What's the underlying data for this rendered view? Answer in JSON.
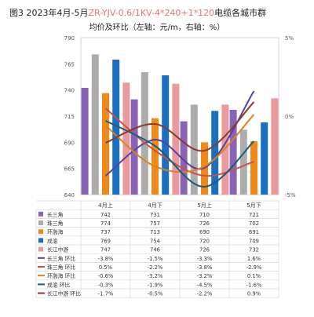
{
  "title": {
    "prefix": "图3 2023年4月-5月",
    "spec": "ZR-YJV-0.6/1KV-4*240+1*120",
    "suffix": "电缆各城市群",
    "subtitle": "均价及环比（左轴：元/m，右轴：%）"
  },
  "chart_data": {
    "type": "bar",
    "categories": [
      "4月上",
      "4月下",
      "5月上",
      "5月下"
    ],
    "y_left": {
      "range": [
        640,
        790
      ],
      "ticks": [
        640,
        665,
        690,
        715,
        740,
        765,
        790
      ]
    },
    "y_right": {
      "range": [
        -5,
        5
      ],
      "ticks": [
        "5%",
        "0%",
        "-5%"
      ]
    },
    "series": [
      {
        "name": "长三角",
        "values": [
          742,
          731,
          710,
          721
        ],
        "color": "#8a64b4",
        "type": "bar"
      },
      {
        "name": "珠三角",
        "values": [
          774,
          757,
          726,
          702
        ],
        "color": "#acacac",
        "type": "bar"
      },
      {
        "name": "环渤海",
        "values": [
          737,
          713,
          690,
          691
        ],
        "color": "#ef8a1a",
        "type": "bar"
      },
      {
        "name": "成渝",
        "values": [
          769,
          754,
          720,
          709
        ],
        "color": "#1b6fc0",
        "type": "bar"
      },
      {
        "name": "长江中游",
        "values": [
          747,
          746,
          726,
          732
        ],
        "color": "#e89a9c",
        "type": "bar"
      }
    ],
    "line_series": [
      {
        "name": "长三角 环比",
        "values": [
          -3.8,
          -1.5,
          -3.3,
          1.6
        ],
        "color": "#5b3e9a"
      },
      {
        "name": "珠三角 环比",
        "values": [
          0.5,
          -2.2,
          -3.8,
          -2.9
        ],
        "color": "#c8504a"
      },
      {
        "name": "环渤海 环比",
        "values": [
          -0.6,
          -3.2,
          -3.2,
          0.1
        ],
        "color": "#e08020"
      },
      {
        "name": "成渝 环比",
        "values": [
          -0.3,
          -1.9,
          -4.5,
          -1.6
        ],
        "color": "#1a5c7a"
      },
      {
        "name": "长江中游 环比",
        "values": [
          -1.7,
          -0.5,
          -2.2,
          0.9
        ],
        "color": "#8a3a2a"
      }
    ],
    "table": {
      "rows": [
        {
          "label": "长三角",
          "swatch": "bar",
          "color": "#8a64b4",
          "cells": [
            "742",
            "731",
            "710",
            "721"
          ]
        },
        {
          "label": "珠三角",
          "swatch": "bar",
          "color": "#acacac",
          "cells": [
            "774",
            "757",
            "726",
            "702"
          ]
        },
        {
          "label": "环渤海",
          "swatch": "bar",
          "color": "#ef8a1a",
          "cells": [
            "737",
            "713",
            "690",
            "691"
          ]
        },
        {
          "label": "成渝",
          "swatch": "bar",
          "color": "#1b6fc0",
          "cells": [
            "769",
            "754",
            "720",
            "709"
          ]
        },
        {
          "label": "长江中游",
          "swatch": "bar",
          "color": "#e89a9c",
          "cells": [
            "747",
            "746",
            "726",
            "732"
          ]
        },
        {
          "label": "长三角 环比",
          "swatch": "line",
          "color": "#5b3e9a",
          "cells": [
            "-3.8%",
            "-1.5%",
            "-3.3%",
            "1.6%"
          ]
        },
        {
          "label": "珠三角 环比",
          "swatch": "line",
          "color": "#c8504a",
          "cells": [
            "0.5%",
            "-2.2%",
            "-3.8%",
            "-2.9%"
          ]
        },
        {
          "label": "环渤海 环比",
          "swatch": "line",
          "color": "#e08020",
          "cells": [
            "-0.6%",
            "-3.2%",
            "-3.2%",
            "0.1%"
          ]
        },
        {
          "label": "成渝 环比",
          "swatch": "line",
          "color": "#1a5c7a",
          "cells": [
            "-0.3%",
            "-1.9%",
            "-4.5%",
            "-1.6%"
          ]
        },
        {
          "label": "长江中游 环比",
          "swatch": "line",
          "color": "#8a3a2a",
          "cells": [
            "-1.7%",
            "-0.5%",
            "-2.2%",
            "0.9%"
          ]
        }
      ]
    }
  }
}
